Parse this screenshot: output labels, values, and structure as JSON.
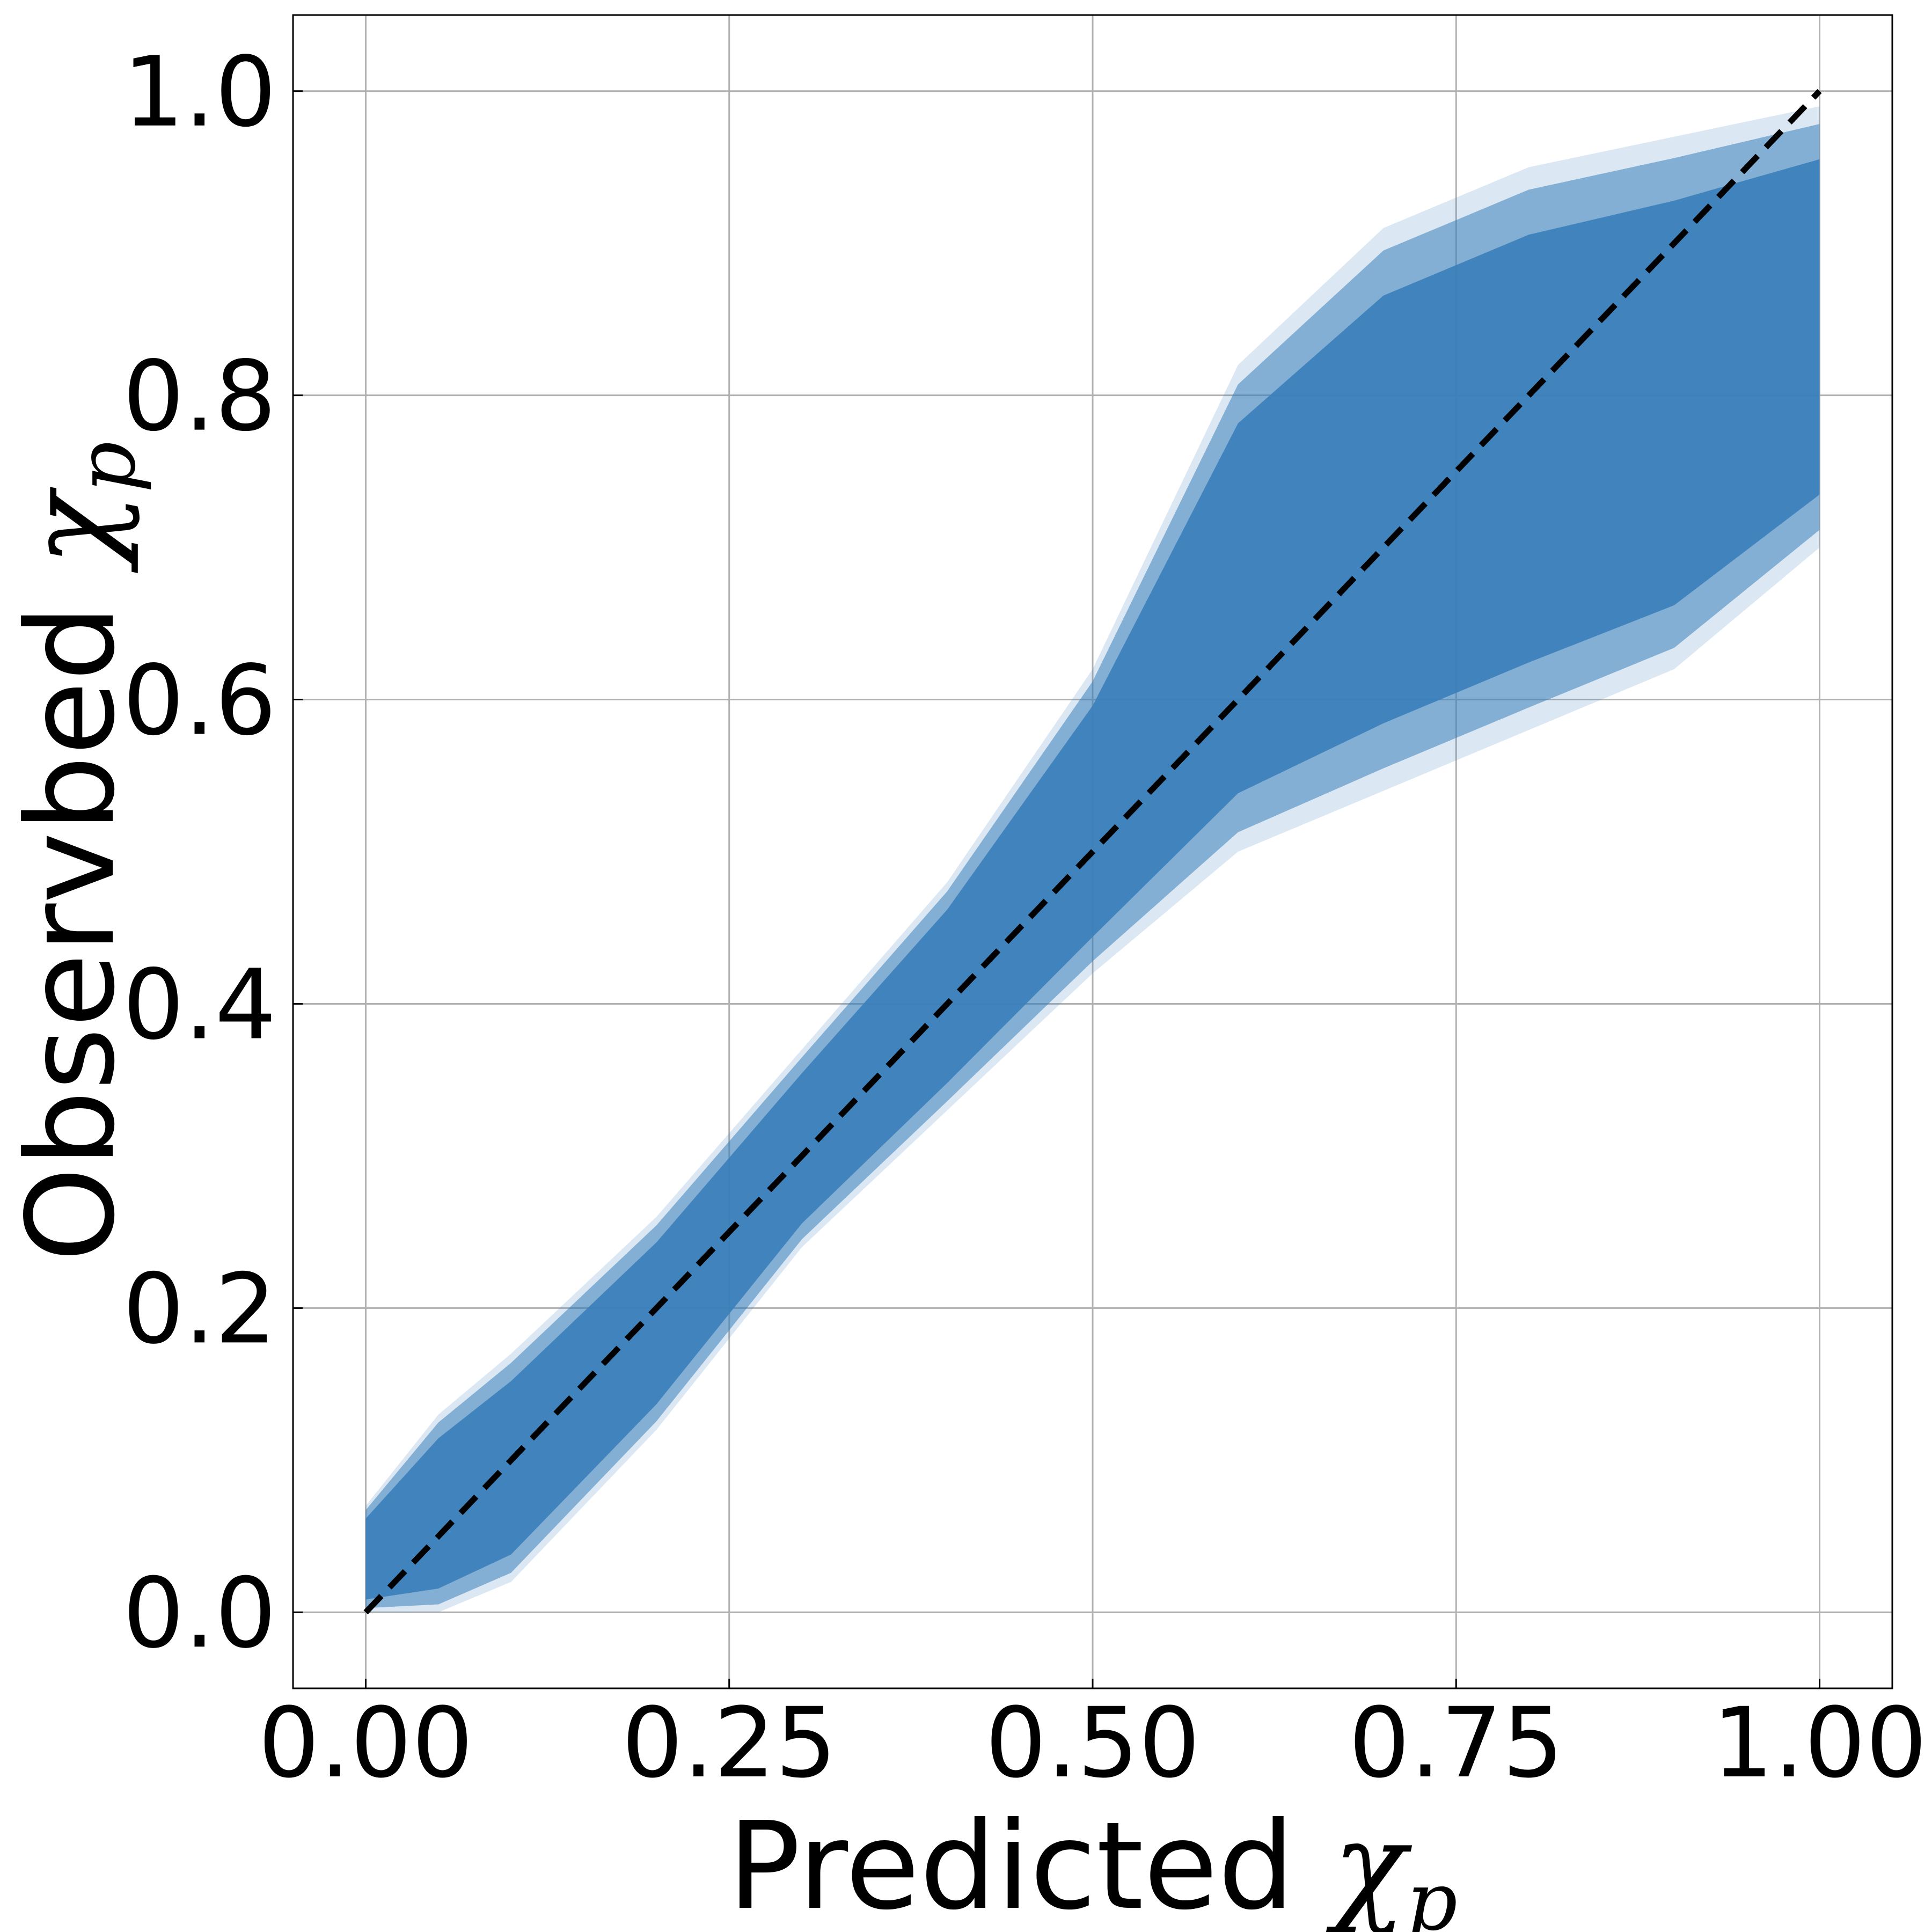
{
  "chart_data": {
    "type": "line",
    "title": "",
    "xlabel": {
      "text": "Predicted",
      "symbol": "χ",
      "subscript": "p"
    },
    "ylabel": {
      "text": "Observbed",
      "symbol": "χ",
      "subscript": "p"
    },
    "xlim": [
      -0.05,
      1.05
    ],
    "ylim": [
      -0.05,
      1.05
    ],
    "xticks": [
      0.0,
      0.25,
      0.5,
      0.75,
      1.0
    ],
    "xtick_labels": [
      "0.00",
      "0.25",
      "0.50",
      "0.75",
      "1.00"
    ],
    "yticks": [
      0.0,
      0.2,
      0.4,
      0.6,
      0.8,
      1.0
    ],
    "ytick_labels": [
      "0.0",
      "0.2",
      "0.4",
      "0.6",
      "0.8",
      "1.0"
    ],
    "grid": true,
    "band_color": "#3a7fba",
    "diagonal_color": "#000000",
    "series": [
      {
        "kind": "band",
        "x": [
          0.0,
          0.05,
          0.1,
          0.2,
          0.3,
          0.4,
          0.5,
          0.55,
          0.6,
          0.7,
          0.8,
          0.9,
          1.0
        ],
        "lower": [
          0.0,
          0.0,
          0.02,
          0.12,
          0.24,
          0.33,
          0.42,
          0.46,
          0.5,
          0.54,
          0.58,
          0.62,
          0.7
        ],
        "upper": [
          0.07,
          0.13,
          0.17,
          0.26,
          0.37,
          0.48,
          0.62,
          0.72,
          0.82,
          0.91,
          0.95,
          0.97,
          0.99
        ]
      },
      {
        "kind": "reference",
        "style": "dashed",
        "x": [
          0.0,
          1.0
        ],
        "y": [
          0.0,
          1.0
        ]
      }
    ]
  }
}
